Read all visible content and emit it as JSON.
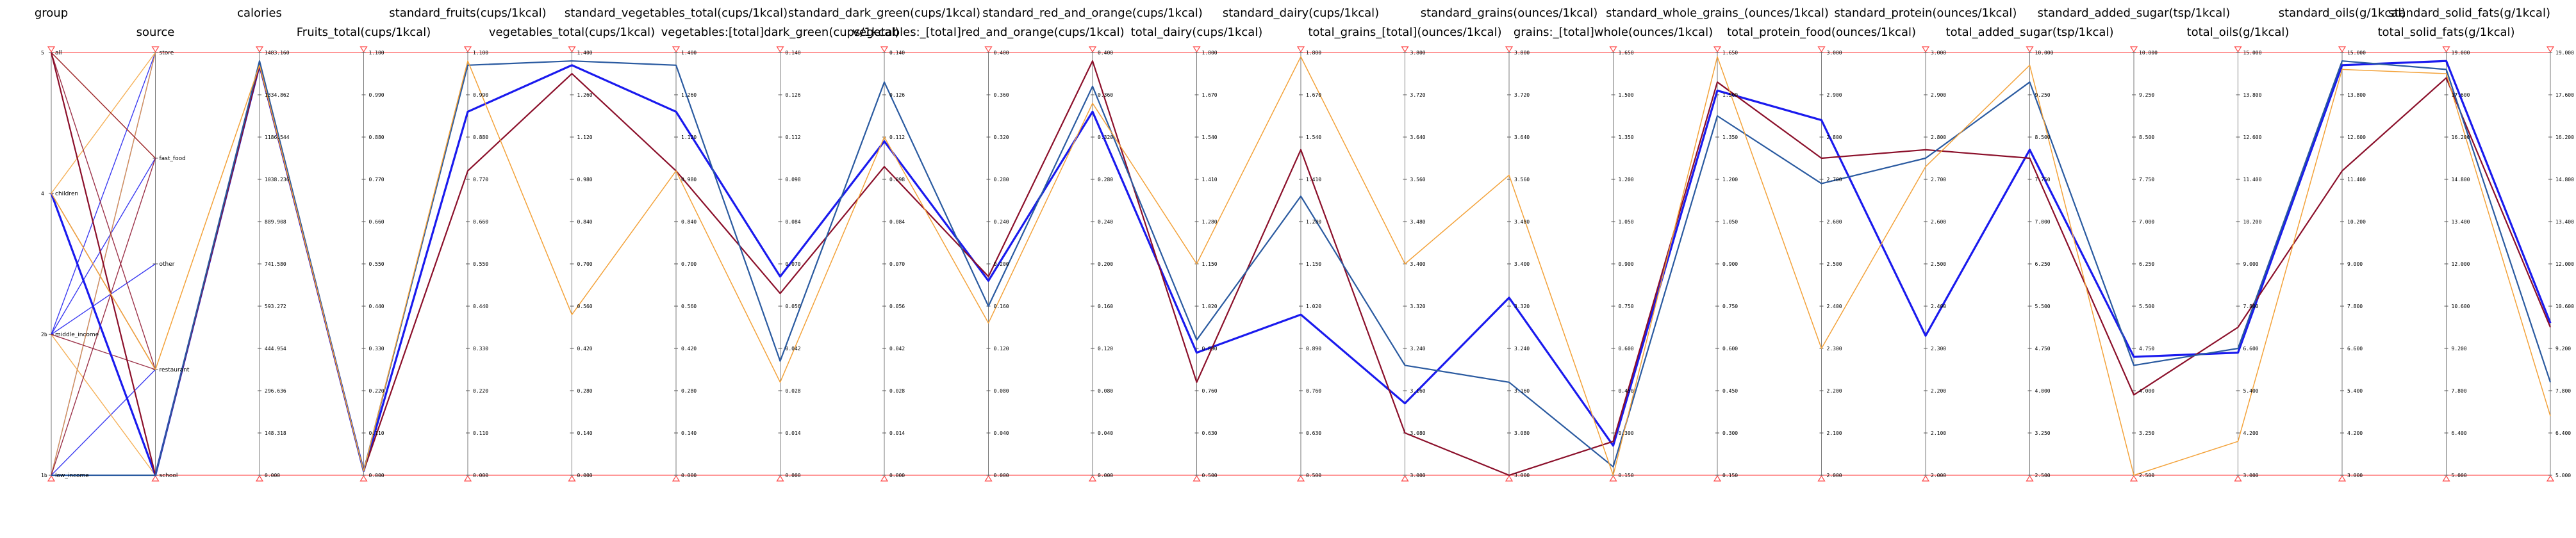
{
  "chart_data": {
    "type": "parallel_coordinates",
    "axes": [
      {
        "name": "group",
        "type": "category",
        "categories": [
          {
            "label": "low_income",
            "tick": "1b",
            "pos": 0.0
          },
          {
            "label": "middle_income",
            "tick": "2b",
            "pos": 0.333
          },
          {
            "label": "children",
            "tick": "4",
            "pos": 0.667
          },
          {
            "label": "all",
            "tick": "5",
            "pos": 1.0
          }
        ]
      },
      {
        "name": "source",
        "type": "category",
        "categories": [
          {
            "label": "school",
            "pos": 0.0
          },
          {
            "label": "restaurant",
            "pos": 0.25
          },
          {
            "label": "other",
            "pos": 0.5
          },
          {
            "label": "fast_food",
            "pos": 0.75
          },
          {
            "label": "store",
            "pos": 1.0
          }
        ]
      },
      {
        "name": "calories",
        "min": 0,
        "max": 1483.16,
        "ticks": [
          "1483.160",
          "1334.862",
          "1186.544",
          "1038.236",
          "889.908",
          "741.580",
          "593.272",
          "444.954",
          "296.636",
          "148.318",
          "0.000"
        ]
      },
      {
        "name": "Fruits_total(cups/1kcal)",
        "min": 0,
        "max": 1.1,
        "ticks": [
          "1.100",
          "0.990",
          "0.880",
          "0.770",
          "0.660",
          "0.550",
          "0.440",
          "0.330",
          "0.220",
          "0.110",
          "0.000"
        ]
      },
      {
        "name": "standard_fruits(cups/1kcal)",
        "min": 0,
        "max": 1.1,
        "ticks": [
          "1.100",
          "0.990",
          "0.880",
          "0.770",
          "0.660",
          "0.550",
          "0.440",
          "0.330",
          "0.220",
          "0.110",
          "0.000"
        ]
      },
      {
        "name": "vegetables_total(cups/1kcal)",
        "min": 0,
        "max": 1.4,
        "ticks": [
          "1.400",
          "1.260",
          "1.120",
          "0.980",
          "0.840",
          "0.700",
          "0.560",
          "0.420",
          "0.280",
          "0.140",
          "0.000"
        ]
      },
      {
        "name": "standard_vegetables_total(cups/1kcal)",
        "min": 0,
        "max": 1.4,
        "ticks": [
          "1.400",
          "1.260",
          "1.120",
          "0.980",
          "0.840",
          "0.700",
          "0.560",
          "0.420",
          "0.280",
          "0.140",
          "0.000"
        ]
      },
      {
        "name": "vegetables:[total]dark_green(cups/1kcal)",
        "min": 0,
        "max": 0.14,
        "ticks": [
          "0.140",
          "0.126",
          "0.112",
          "0.098",
          "0.084",
          "0.070",
          "0.056",
          "0.042",
          "0.028",
          "0.014",
          "0.000"
        ]
      },
      {
        "name": "standard_dark_green(cups/1kcal)",
        "min": 0,
        "max": 0.14,
        "ticks": [
          "0.140",
          "0.126",
          "0.112",
          "0.098",
          "0.084",
          "0.070",
          "0.056",
          "0.042",
          "0.028",
          "0.014",
          "0.000"
        ]
      },
      {
        "name": "vegetables:_[total]red_and_orange(cups/1kcal)",
        "min": 0,
        "max": 0.4,
        "ticks": [
          "0.400",
          "0.360",
          "0.320",
          "0.280",
          "0.240",
          "0.200",
          "0.160",
          "0.120",
          "0.080",
          "0.040",
          "0.000"
        ]
      },
      {
        "name": "standard_red_and_orange(cups/1kcal)",
        "min": 0,
        "max": 0.4,
        "ticks": [
          "0.400",
          "0.360",
          "0.320",
          "0.280",
          "0.240",
          "0.200",
          "0.160",
          "0.120",
          "0.080",
          "0.040",
          "0.000"
        ]
      },
      {
        "name": "total_dairy(cups/1kcal)",
        "min": 0,
        "max": 1.8,
        "ticks": [
          "1.800",
          "1.670",
          "1.540",
          "1.410",
          "1.280",
          "1.150",
          "1.020",
          "0.890",
          "0.760",
          "0.630",
          "0.500"
        ]
      },
      {
        "name": "standard_dairy(cups/1kcal)",
        "min": 0,
        "max": 1.8,
        "ticks": [
          "1.800",
          "1.670",
          "1.540",
          "1.410",
          "1.280",
          "1.150",
          "1.020",
          "0.890",
          "0.760",
          "0.630",
          "0.500"
        ]
      },
      {
        "name": "total_grains_[total](ounces/1kcal)",
        "min": 0,
        "max": 3.8,
        "ticks": [
          "3.800",
          "3.720",
          "3.640",
          "3.560",
          "3.480",
          "3.400",
          "3.320",
          "3.240",
          "3.160",
          "3.080",
          "3.000"
        ]
      },
      {
        "name": "standard_grains(ounces/1kcal)",
        "min": 0,
        "max": 3.8,
        "ticks": [
          "3.800",
          "3.720",
          "3.640",
          "3.560",
          "3.480",
          "3.400",
          "3.320",
          "3.240",
          "3.160",
          "3.080",
          "3.000"
        ]
      },
      {
        "name": "grains:_[total]whole(ounces/1kcal)",
        "min": 0,
        "max": 1.65,
        "ticks": [
          "1.650",
          "1.500",
          "1.350",
          "1.200",
          "1.050",
          "0.900",
          "0.750",
          "0.600",
          "0.450",
          "0.300",
          "0.150"
        ]
      },
      {
        "name": "standard_whole_grains_(ounces/1kcal)",
        "min": 0,
        "max": 1.65,
        "ticks": [
          "1.650",
          "1.500",
          "1.350",
          "1.200",
          "1.050",
          "0.900",
          "0.750",
          "0.600",
          "0.450",
          "0.300",
          "0.150"
        ]
      },
      {
        "name": "total_protein_food(ounces/1kcal)",
        "min": 0,
        "max": 3.0,
        "ticks": [
          "3.000",
          "2.900",
          "2.800",
          "2.700",
          "2.600",
          "2.500",
          "2.400",
          "2.300",
          "2.200",
          "2.100",
          "2.000"
        ]
      },
      {
        "name": "standard_protein(ounces/1kcal)",
        "min": 0,
        "max": 3.0,
        "ticks": [
          "3.000",
          "2.900",
          "2.800",
          "2.700",
          "2.600",
          "2.500",
          "2.400",
          "2.300",
          "2.200",
          "2.100",
          "2.000"
        ]
      },
      {
        "name": "total_added_sugar(tsp/1kcal)",
        "min": 0,
        "max": 10.0,
        "ticks": [
          "10.000",
          "9.250",
          "8.500",
          "7.750",
          "7.000",
          "6.250",
          "5.500",
          "4.750",
          "4.000",
          "3.250",
          "2.500"
        ]
      },
      {
        "name": "standard_added_sugar(tsp/1kcal)",
        "min": 0,
        "max": 10.0,
        "ticks": [
          "10.000",
          "9.250",
          "8.500",
          "7.750",
          "7.000",
          "6.250",
          "5.500",
          "4.750",
          "4.000",
          "3.250",
          "2.500"
        ]
      },
      {
        "name": "total_oils(g/1kcal)",
        "min": 0,
        "max": 15.0,
        "ticks": [
          "15.000",
          "13.800",
          "12.600",
          "11.400",
          "10.200",
          "9.000",
          "7.800",
          "6.600",
          "5.400",
          "4.200",
          "3.000"
        ]
      },
      {
        "name": "standard_oils(g/1kcal)",
        "min": 0,
        "max": 15.0,
        "ticks": [
          "15.000",
          "13.800",
          "12.600",
          "11.400",
          "10.200",
          "9.000",
          "7.800",
          "6.600",
          "5.400",
          "4.200",
          "3.000"
        ]
      },
      {
        "name": "total_solid_fats(g/1kcal)",
        "min": 0,
        "max": 19.0,
        "ticks": [
          "19.000",
          "17.600",
          "16.200",
          "14.800",
          "13.400",
          "12.000",
          "10.600",
          "9.200",
          "7.800",
          "6.400",
          "5.000"
        ]
      },
      {
        "name": "standard_solid_fats(g/1kcal)",
        "min": 0,
        "max": 19.0,
        "ticks": [
          "19.000",
          "17.600",
          "16.200",
          "14.800",
          "13.400",
          "12.000",
          "10.600",
          "9.200",
          "7.800",
          "6.400",
          "5.000"
        ]
      }
    ],
    "series": [
      {
        "color": "#1a1aee",
        "width": 3.2,
        "values": [
          0.667,
          0.0,
          0.97,
          0.01,
          0.86,
          0.97,
          0.86,
          0.47,
          0.79,
          0.46,
          0.86,
          0.29,
          0.38,
          0.17,
          0.42,
          0.07,
          0.91,
          0.84,
          0.33,
          0.77,
          0.28,
          0.29,
          0.97,
          0.98,
          0.36
        ]
      },
      {
        "color": "#8b0f2a",
        "width": 2.2,
        "values": [
          1.0,
          0.0,
          0.97,
          0.01,
          0.72,
          0.95,
          0.72,
          0.43,
          0.73,
          0.47,
          0.98,
          0.22,
          0.77,
          0.1,
          0.0,
          0.08,
          0.93,
          0.75,
          0.77,
          0.75,
          0.19,
          0.35,
          0.72,
          0.94,
          0.35
        ]
      },
      {
        "color": "#2a5aa0",
        "width": 2.2,
        "values": [
          0.0,
          0.0,
          0.98,
          0.01,
          0.97,
          0.98,
          0.97,
          0.27,
          0.93,
          0.4,
          0.92,
          0.32,
          0.66,
          0.26,
          0.22,
          0.02,
          0.85,
          0.69,
          0.75,
          0.93,
          0.26,
          0.3,
          0.98,
          0.96,
          0.22
        ]
      },
      {
        "color": "#f3a23a",
        "width": 1.5,
        "values": [
          0.667,
          0.25,
          0.97,
          0.01,
          0.98,
          0.38,
          0.72,
          0.22,
          0.8,
          0.36,
          0.88,
          0.5,
          0.99,
          0.5,
          0.71,
          0.0,
          0.99,
          0.3,
          0.73,
          0.97,
          0.0,
          0.08,
          0.96,
          0.95,
          0.14
        ]
      }
    ],
    "category_links": {
      "blue": [
        [
          0,
          0
        ],
        [
          0,
          0.25
        ],
        [
          0.333,
          0.5
        ],
        [
          0.333,
          0.75
        ],
        [
          0.333,
          1.0
        ],
        [
          0.667,
          0.25
        ],
        [
          1.0,
          0.0
        ],
        [
          0.0,
          1.0
        ]
      ],
      "orange": [
        [
          0.667,
          0.25
        ],
        [
          0.667,
          1.0
        ],
        [
          1.0,
          0.75
        ],
        [
          0.333,
          0.0
        ],
        [
          0.0,
          1.0
        ]
      ],
      "red": [
        [
          1.0,
          0.0
        ],
        [
          1.0,
          0.75
        ],
        [
          0.333,
          0.25
        ],
        [
          0.0,
          0.75
        ],
        [
          1.0,
          0.25
        ]
      ]
    },
    "colors": {
      "frame": "#ff5a5a",
      "marker": "#ff4a4a"
    }
  }
}
